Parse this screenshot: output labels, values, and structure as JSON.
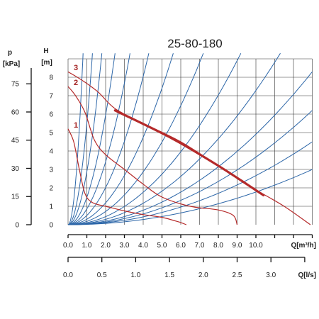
{
  "chart_data": {
    "type": "line",
    "title": "25-80-180",
    "left_axis": {
      "label_symbol": "p",
      "label_unit": "[kPa]",
      "ticks": [
        "0",
        "15",
        "30",
        "45",
        "60",
        "75"
      ]
    },
    "y_axis": {
      "label_symbol": "H",
      "label_unit": "[m]",
      "ticks": [
        "0",
        "1",
        "2",
        "3",
        "4",
        "5",
        "6",
        "7",
        "8"
      ],
      "ylim": [
        0,
        9
      ]
    },
    "x_axis": {
      "label": "Q[m³/h]",
      "ticks": [
        "0.0",
        "1.0",
        "2.0",
        "3.0",
        "4.0",
        "5.0",
        "6.0",
        "7.0",
        "8.0",
        "9.0",
        "10.0"
      ],
      "xlim": [
        0,
        13
      ]
    },
    "x2_axis": {
      "label": "Q[l/s]",
      "ticks": [
        "0.0",
        "0.5",
        "1.0",
        "1.5",
        "2.0",
        "2.5",
        "3.0"
      ],
      "xlim": [
        0,
        3.5
      ]
    },
    "grid": true,
    "pump_curves": [
      {
        "label": "3",
        "color": "#b52a2a",
        "points": [
          [
            0,
            8.3
          ],
          [
            0.8,
            7.8
          ],
          [
            1.6,
            7.2
          ],
          [
            2.5,
            6.3
          ],
          [
            4.0,
            5.5
          ],
          [
            6.0,
            4.5
          ],
          [
            8.0,
            3.2
          ],
          [
            10.0,
            1.9
          ],
          [
            11.5,
            1.0
          ],
          [
            12.9,
            0.0
          ]
        ]
      },
      {
        "label": "2",
        "color": "#b52a2a",
        "points": [
          [
            0,
            7.5
          ],
          [
            0.4,
            7.0
          ],
          [
            0.9,
            6.1
          ],
          [
            1.4,
            4.6
          ],
          [
            2.0,
            3.8
          ],
          [
            3.0,
            3.0
          ],
          [
            4.0,
            2.2
          ],
          [
            5.0,
            1.5
          ],
          [
            6.5,
            1.0
          ],
          [
            8.0,
            0.8
          ],
          [
            8.8,
            0.5
          ],
          [
            9.0,
            0.0
          ]
        ]
      },
      {
        "label": "1",
        "color": "#b52a2a",
        "points": [
          [
            0,
            5.2
          ],
          [
            0.3,
            4.5
          ],
          [
            0.6,
            3.0
          ],
          [
            0.9,
            1.7
          ],
          [
            1.3,
            1.2
          ],
          [
            2.0,
            1.0
          ],
          [
            3.0,
            0.75
          ],
          [
            4.0,
            0.55
          ],
          [
            5.0,
            0.4
          ],
          [
            5.9,
            0.15
          ],
          [
            6.3,
            0.0
          ]
        ]
      }
    ],
    "bold_segment": {
      "color": "#b52a2a",
      "points": [
        [
          2.5,
          6.2
        ],
        [
          5.5,
          4.7
        ],
        [
          8.0,
          3.2
        ],
        [
          10.4,
          1.6
        ]
      ]
    },
    "system_curves": {
      "color": "#2c66a8",
      "end_points": [
        [
          0.8,
          9.3
        ],
        [
          1.3,
          9.3
        ],
        [
          1.8,
          9.3
        ],
        [
          2.5,
          9.3
        ],
        [
          3.3,
          9.3
        ],
        [
          4.3,
          9.3
        ],
        [
          5.6,
          9.3
        ],
        [
          7.2,
          9.3
        ],
        [
          9.2,
          9.3
        ],
        [
          11.3,
          9.3
        ],
        [
          13.0,
          8.3
        ],
        [
          13.0,
          6.2
        ],
        [
          13.0,
          4.5
        ],
        [
          13.0,
          3.0
        ]
      ]
    }
  }
}
